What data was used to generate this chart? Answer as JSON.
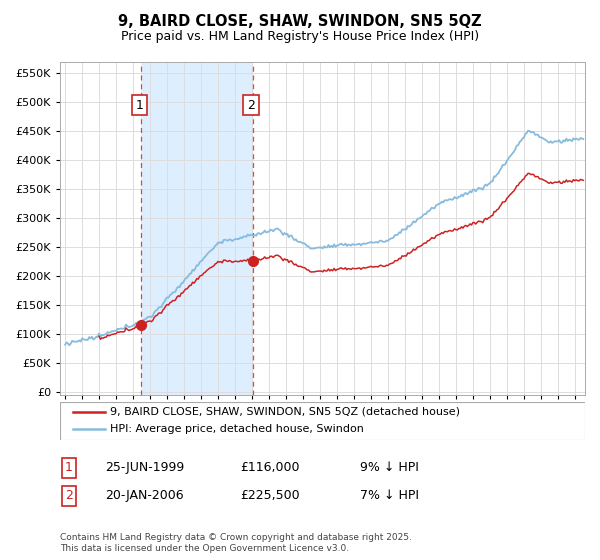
{
  "title": "9, BAIRD CLOSE, SHAW, SWINDON, SN5 5QZ",
  "subtitle": "Price paid vs. HM Land Registry's House Price Index (HPI)",
  "yticks": [
    0,
    50000,
    100000,
    150000,
    200000,
    250000,
    300000,
    350000,
    400000,
    450000,
    500000,
    550000
  ],
  "ylim": [
    -5000,
    570000
  ],
  "legend_line1": "9, BAIRD CLOSE, SHAW, SWINDON, SN5 5QZ (detached house)",
  "legend_line2": "HPI: Average price, detached house, Swindon",
  "sale1_label": "1",
  "sale1_date": "25-JUN-1999",
  "sale1_price": "£116,000",
  "sale1_hpi": "9% ↓ HPI",
  "sale2_label": "2",
  "sale2_date": "20-JAN-2006",
  "sale2_price": "£225,500",
  "sale2_hpi": "7% ↓ HPI",
  "footnote": "Contains HM Land Registry data © Crown copyright and database right 2025.\nThis data is licensed under the Open Government Licence v3.0.",
  "line_color_red": "#cc2222",
  "line_color_blue": "#88bbdd",
  "shade_color": "#ddeeff",
  "vline_color": "#cc2222",
  "background_color": "#ffffff",
  "grid_color": "#dddddd",
  "sale1_x": 1999.48,
  "sale2_x": 2006.05,
  "sale1_y": 116000,
  "sale2_y": 225500,
  "xlim_left": 1994.7,
  "xlim_right": 2025.6
}
